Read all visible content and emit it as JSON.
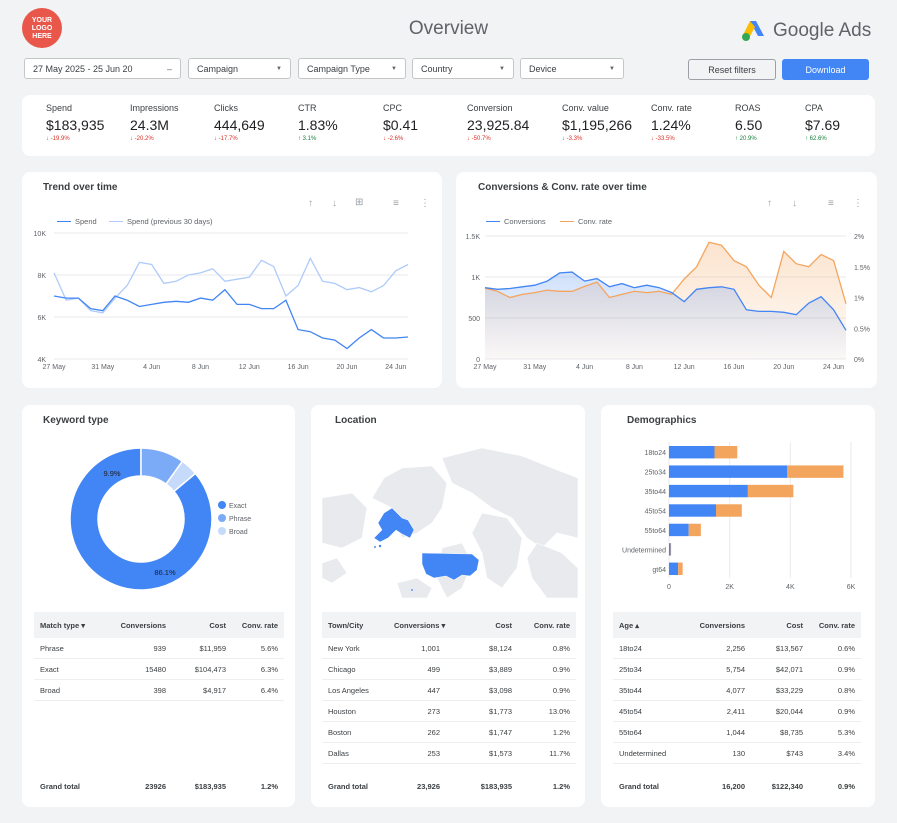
{
  "header": {
    "logo_text": "YOUR LOGO HERE",
    "title": "Overview",
    "brand": "Google Ads",
    "colors": {
      "accent": "#4285f4",
      "logo_bg": "#e8574a",
      "secondary": "#f4a55d"
    }
  },
  "filters": {
    "date_range": "27 May 2025 - 25 Jun 20",
    "campaign": "Campaign",
    "campaign_type": "Campaign Type",
    "country": "Country",
    "device": "Device",
    "reset_label": "Reset filters",
    "download_label": "Download"
  },
  "kpis": [
    {
      "label": "Spend",
      "value": "$183,935",
      "change": "↓ -19.9%",
      "dir": "neg"
    },
    {
      "label": "Impressions",
      "value": "24.3M",
      "change": "↓ -20.2%",
      "dir": "neg"
    },
    {
      "label": "Clicks",
      "value": "444,649",
      "change": "↓ -17.7%",
      "dir": "neg"
    },
    {
      "label": "CTR",
      "value": "1.83%",
      "change": "↑ 3.1%",
      "dir": "pos"
    },
    {
      "label": "CPC",
      "value": "$0.41",
      "change": "↓ -2.6%",
      "dir": "neg"
    },
    {
      "label": "Conversion",
      "value": "23,925.84",
      "change": "↓ -50.7%",
      "dir": "neg"
    },
    {
      "label": "Conv. value",
      "value": "$1,195,266",
      "change": "↓ -3.3%",
      "dir": "neg"
    },
    {
      "label": "Conv. rate",
      "value": "1.24%",
      "change": "↓ -33.5%",
      "dir": "neg"
    },
    {
      "label": "ROAS",
      "value": "6.50",
      "change": "↑ 20.9%",
      "dir": "pos"
    },
    {
      "label": "CPA",
      "value": "$7.69",
      "change": "↑ 62.6%",
      "dir": "pos"
    }
  ],
  "trend": {
    "title": "Trend over time",
    "legend": [
      "Spend",
      "Spend (previous 30 days)"
    ]
  },
  "conv": {
    "title": "Conversions & Conv. rate over time",
    "legend": [
      "Conversions",
      "Conv. rate"
    ]
  },
  "keyword": {
    "title": "Keyword type",
    "legend": [
      "Exact",
      "Phrase",
      "Broad"
    ],
    "labels": [
      "86.1%",
      "9.9%"
    ],
    "table": {
      "headers": [
        "Match type ▾",
        "Conversions",
        "Cost",
        "Conv. rate"
      ],
      "rows": [
        [
          "Phrase",
          "939",
          "$11,959",
          "5.6%"
        ],
        [
          "Exact",
          "15480",
          "$104,473",
          "6.3%"
        ],
        [
          "Broad",
          "398",
          "$4,917",
          "6.4%"
        ]
      ],
      "total": [
        "Grand total",
        "23926",
        "$183,935",
        "1.2%"
      ]
    }
  },
  "location": {
    "title": "Location",
    "table": {
      "headers": [
        "Town/City",
        "Conversions ▾",
        "Cost",
        "Conv. rate"
      ],
      "rows": [
        [
          "New York",
          "1,001",
          "$8,124",
          "0.8%"
        ],
        [
          "Chicago",
          "499",
          "$3,889",
          "0.9%"
        ],
        [
          "Los Angeles",
          "447",
          "$3,098",
          "0.9%"
        ],
        [
          "Houston",
          "273",
          "$1,773",
          "13.0%"
        ],
        [
          "Boston",
          "262",
          "$1,747",
          "1.2%"
        ],
        [
          "Dallas",
          "253",
          "$1,573",
          "11.7%"
        ]
      ],
      "total": [
        "Grand total",
        "23,926",
        "$183,935",
        "1.2%"
      ]
    }
  },
  "demo": {
    "title": "Demographics",
    "table": {
      "headers": [
        "Age ▴",
        "Conversions",
        "Cost",
        "Conv. rate"
      ],
      "rows": [
        [
          "18to24",
          "2,256",
          "$13,567",
          "0.6%"
        ],
        [
          "25to34",
          "5,754",
          "$42,071",
          "0.9%"
        ],
        [
          "35to44",
          "4,077",
          "$33,229",
          "0.8%"
        ],
        [
          "45to54",
          "2,411",
          "$20,044",
          "0.9%"
        ],
        [
          "55to64",
          "1,044",
          "$8,735",
          "5.3%"
        ],
        [
          "Undetermined",
          "130",
          "$743",
          "3.4%"
        ]
      ],
      "total": [
        "Grand total",
        "16,200",
        "$122,340",
        "0.9%"
      ]
    }
  },
  "chart_data": [
    {
      "type": "line",
      "title": "Trend over time",
      "x": [
        "27 May",
        "28 May",
        "29 May",
        "30 May",
        "31 May",
        "1 Jun",
        "2 Jun",
        "3 Jun",
        "4 Jun",
        "5 Jun",
        "6 Jun",
        "7 Jun",
        "8 Jun",
        "9 Jun",
        "10 Jun",
        "11 Jun",
        "12 Jun",
        "13 Jun",
        "14 Jun",
        "15 Jun",
        "16 Jun",
        "17 Jun",
        "18 Jun",
        "19 Jun",
        "20 Jun",
        "21 Jun",
        "22 Jun",
        "23 Jun",
        "24 Jun",
        "25 Jun"
      ],
      "xticks": [
        "27 May",
        "31 May",
        "4 Jun",
        "8 Jun",
        "12 Jun",
        "16 Jun",
        "20 Jun",
        "24 Jun"
      ],
      "yticks": [
        "4K",
        "6K",
        "8K",
        "10K"
      ],
      "ylim": [
        4000,
        10000
      ],
      "series": [
        {
          "name": "Spend",
          "color": "#4285f4",
          "values": [
            7000,
            6900,
            6900,
            6400,
            6300,
            7000,
            6800,
            6500,
            6600,
            6700,
            6750,
            6700,
            6900,
            6800,
            7300,
            6600,
            6600,
            6400,
            6400,
            6800,
            5400,
            5300,
            5000,
            4900,
            4500,
            5000,
            5400,
            5000,
            5000,
            5050
          ]
        },
        {
          "name": "Spend (previous 30 days)",
          "color": "#aecbfa",
          "values": [
            8100,
            6800,
            6900,
            6300,
            6200,
            6900,
            7500,
            8600,
            8500,
            7600,
            7700,
            8000,
            8100,
            8300,
            7700,
            7800,
            7900,
            8700,
            8400,
            7000,
            7500,
            8800,
            7700,
            7600,
            7300,
            7400,
            7200,
            7500,
            8200,
            8500
          ]
        }
      ]
    },
    {
      "type": "area",
      "title": "Conversions & Conv. rate over time",
      "x": [
        "27 May",
        "28 May",
        "29 May",
        "30 May",
        "31 May",
        "1 Jun",
        "2 Jun",
        "3 Jun",
        "4 Jun",
        "5 Jun",
        "6 Jun",
        "7 Jun",
        "8 Jun",
        "9 Jun",
        "10 Jun",
        "11 Jun",
        "12 Jun",
        "13 Jun",
        "14 Jun",
        "15 Jun",
        "16 Jun",
        "17 Jun",
        "18 Jun",
        "19 Jun",
        "20 Jun",
        "21 Jun",
        "22 Jun",
        "23 Jun",
        "24 Jun",
        "25 Jun"
      ],
      "xticks": [
        "27 May",
        "31 May",
        "4 Jun",
        "8 Jun",
        "12 Jun",
        "16 Jun",
        "20 Jun",
        "24 Jun"
      ],
      "yticks_left": [
        "0",
        "500",
        "1K",
        "1.5K"
      ],
      "yticks_right": [
        "0%",
        "0.5%",
        "1%",
        "1.5%",
        "2%"
      ],
      "series": [
        {
          "name": "Conversions",
          "axis": "left",
          "color": "#4285f4",
          "values": [
            870,
            850,
            860,
            880,
            900,
            950,
            1050,
            1060,
            950,
            980,
            880,
            920,
            870,
            900,
            870,
            810,
            700,
            850,
            870,
            880,
            850,
            600,
            580,
            580,
            570,
            540,
            680,
            760,
            600,
            350
          ]
        },
        {
          "name": "Conv. rate",
          "axis": "right",
          "color": "#f4a55d",
          "values": [
            1.15,
            1.1,
            1.0,
            1.05,
            1.08,
            1.12,
            1.1,
            1.1,
            1.18,
            1.25,
            1.0,
            1.05,
            1.1,
            1.08,
            1.1,
            1.05,
            1.3,
            1.5,
            1.9,
            1.85,
            1.6,
            1.5,
            1.2,
            1.0,
            1.75,
            1.55,
            1.5,
            1.7,
            1.6,
            0.9
          ]
        }
      ]
    },
    {
      "type": "pie",
      "title": "Keyword type",
      "categories": [
        "Exact",
        "Phrase",
        "Broad"
      ],
      "values": [
        86.1,
        9.9,
        4.0
      ],
      "colors": [
        "#4285f4",
        "#7baaf7",
        "#c6dafc"
      ]
    },
    {
      "type": "bar",
      "title": "Demographics",
      "categories": [
        "18to24",
        "25to34",
        "35to44",
        "45to54",
        "55to64",
        "Undetermined",
        "gt64"
      ],
      "xticks": [
        "0",
        "2K",
        "4K",
        "6K"
      ],
      "xlim": [
        0,
        6000
      ],
      "series": [
        {
          "name": "",
          "color": "#4285f4",
          "values": [
            1500,
            3900,
            2600,
            1550,
            650,
            50,
            300
          ]
        },
        {
          "name": "",
          "color": "#f4a55d",
          "values": [
            750,
            1850,
            1500,
            850,
            400,
            20,
            150
          ]
        }
      ]
    }
  ]
}
